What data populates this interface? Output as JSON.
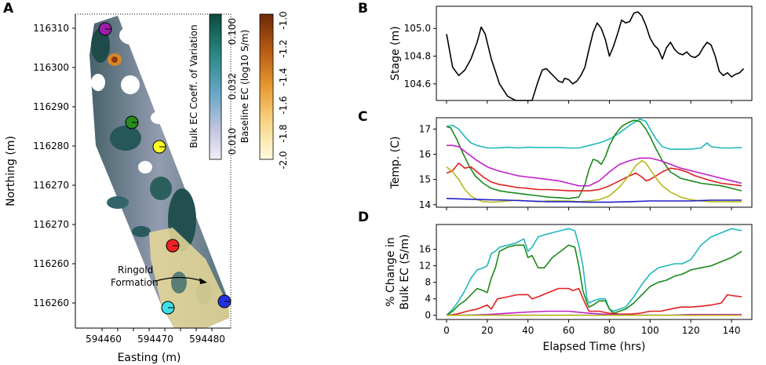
{
  "panels": {
    "a": "A",
    "b": "B",
    "c": "C",
    "d": "D"
  },
  "map": {
    "xlabel": "Easting (m)",
    "ylabel": "Northing (m)",
    "xticks": [
      "594460",
      "594470",
      "594480"
    ],
    "yticks": [
      "116310",
      "116300",
      "116290",
      "116280",
      "116270",
      "116260"
    ],
    "annotation": [
      "Ringold",
      "Formation"
    ],
    "cv_colorbar": {
      "label": "Bulk EC Coeff. of Variation",
      "ticks": [
        "0.100",
        "0.032",
        "0.010"
      ]
    },
    "ec_colorbar": {
      "label": "Baseline EC (log10 S/m)",
      "ticks": [
        "-1.0",
        "-1.2",
        "-1.4",
        "-1.6",
        "-1.8",
        "-2.0"
      ]
    },
    "sensors": [
      {
        "name": "purple",
        "color": "#9b1fa8"
      },
      {
        "name": "green",
        "color": "#2a8a1e"
      },
      {
        "name": "yellow",
        "color": "#ffff22"
      },
      {
        "name": "red",
        "color": "#ee2222"
      },
      {
        "name": "cyan",
        "color": "#3ee0e8"
      },
      {
        "name": "blue",
        "color": "#2233dd"
      }
    ]
  },
  "chart_data": [
    {
      "panel": "B",
      "type": "line",
      "ylabel": "Stage (m)",
      "xlim": [
        -5,
        150
      ],
      "ylim": [
        104.48,
        105.16
      ],
      "yticks": [
        "104.6",
        "104.8",
        "105.0"
      ],
      "series": [
        {
          "name": "stage",
          "color": "#000000",
          "x": [
            0,
            3,
            6,
            9,
            12,
            15,
            17,
            19,
            22,
            26,
            30,
            34,
            38,
            42,
            45,
            47,
            49,
            51,
            53,
            55,
            57,
            58,
            60,
            62,
            64,
            66,
            68,
            70,
            72,
            74,
            76,
            78,
            80,
            82,
            84,
            86,
            88,
            90,
            92,
            94,
            96,
            98,
            100,
            102,
            104,
            106,
            108,
            110,
            112,
            114,
            116,
            118,
            120,
            122,
            124,
            126,
            128,
            130,
            132,
            134,
            136,
            138,
            140,
            142,
            144,
            146
          ],
          "y": [
            104.96,
            104.72,
            104.66,
            104.7,
            104.78,
            104.9,
            105.01,
            104.96,
            104.78,
            104.6,
            104.51,
            104.48,
            104.48,
            104.48,
            104.62,
            104.7,
            104.71,
            104.68,
            104.65,
            104.62,
            104.61,
            104.64,
            104.63,
            104.6,
            104.62,
            104.66,
            104.72,
            104.85,
            104.97,
            105.04,
            105.0,
            104.92,
            104.8,
            104.87,
            104.96,
            105.06,
            105.04,
            105.05,
            105.11,
            105.12,
            105.09,
            105.02,
            104.93,
            104.88,
            104.85,
            104.78,
            104.86,
            104.9,
            104.85,
            104.82,
            104.81,
            104.83,
            104.8,
            104.79,
            104.81,
            104.86,
            104.9,
            104.88,
            104.8,
            104.69,
            104.66,
            104.68,
            104.65,
            104.67,
            104.68,
            104.71
          ]
        }
      ]
    },
    {
      "panel": "C",
      "type": "line",
      "ylabel": "Temp. (C)",
      "xlim": [
        -5,
        150
      ],
      "ylim": [
        13.9,
        17.45
      ],
      "yticks": [
        "14",
        "15",
        "16",
        "17"
      ],
      "series": [
        {
          "name": "cyan",
          "color": "#20b8bc",
          "x": [
            0,
            3,
            6,
            9,
            12,
            15,
            20,
            25,
            30,
            35,
            40,
            45,
            50,
            55,
            60,
            65,
            70,
            75,
            80,
            85,
            90,
            95,
            98,
            100,
            103,
            106,
            110,
            115,
            120,
            125,
            128,
            130,
            135,
            140,
            145
          ],
          "y": [
            17.1,
            17.15,
            17.0,
            16.7,
            16.45,
            16.35,
            16.25,
            16.25,
            16.28,
            16.25,
            16.28,
            16.27,
            16.27,
            16.27,
            16.25,
            16.25,
            16.35,
            16.45,
            16.6,
            16.85,
            17.15,
            17.4,
            17.3,
            17.0,
            16.6,
            16.3,
            16.2,
            16.2,
            16.2,
            16.25,
            16.45,
            16.3,
            16.25,
            16.25,
            16.27
          ]
        },
        {
          "name": "green",
          "color": "#1a8a1a",
          "x": [
            0,
            2,
            5,
            8,
            11,
            14,
            18,
            22,
            26,
            30,
            35,
            40,
            45,
            50,
            55,
            60,
            65,
            68,
            70,
            72,
            74,
            76,
            78,
            80,
            83,
            86,
            89,
            92,
            95,
            98,
            100,
            103,
            106,
            110,
            115,
            120,
            125,
            130,
            135,
            140,
            145
          ],
          "y": [
            17.1,
            17.05,
            16.6,
            16.05,
            15.55,
            15.15,
            14.85,
            14.65,
            14.55,
            14.5,
            14.45,
            14.4,
            14.35,
            14.3,
            14.28,
            14.25,
            14.3,
            14.8,
            15.4,
            15.8,
            15.75,
            15.6,
            15.9,
            16.35,
            16.8,
            17.1,
            17.25,
            17.35,
            17.3,
            17.0,
            16.7,
            16.2,
            15.75,
            15.3,
            15.05,
            14.95,
            14.85,
            14.8,
            14.75,
            14.65,
            14.55
          ]
        },
        {
          "name": "purple",
          "color": "#c020c8",
          "x": [
            0,
            3,
            6,
            10,
            15,
            20,
            25,
            30,
            35,
            40,
            45,
            50,
            55,
            60,
            65,
            70,
            75,
            80,
            85,
            90,
            95,
            100,
            105,
            110,
            115,
            120,
            125,
            130,
            135,
            140,
            145
          ],
          "y": [
            16.35,
            16.35,
            16.3,
            16.05,
            15.75,
            15.5,
            15.35,
            15.25,
            15.15,
            15.1,
            15.05,
            15.0,
            14.95,
            14.85,
            14.75,
            14.75,
            14.95,
            15.3,
            15.6,
            15.75,
            15.85,
            15.85,
            15.75,
            15.6,
            15.45,
            15.35,
            15.25,
            15.15,
            15.05,
            14.95,
            14.85
          ]
        },
        {
          "name": "red",
          "color": "#e02020",
          "x": [
            0,
            3,
            6,
            9,
            12,
            15,
            18,
            22,
            26,
            30,
            35,
            40,
            45,
            50,
            55,
            60,
            65,
            70,
            75,
            80,
            85,
            90,
            93,
            96,
            98,
            100,
            103,
            106,
            110,
            114,
            118,
            122,
            126,
            130,
            135,
            140,
            145
          ],
          "y": [
            15.25,
            15.35,
            15.65,
            15.45,
            15.5,
            15.3,
            15.1,
            14.9,
            14.8,
            14.75,
            14.68,
            14.65,
            14.6,
            14.6,
            14.58,
            14.55,
            14.55,
            14.55,
            14.6,
            14.75,
            14.95,
            15.15,
            15.25,
            15.1,
            14.95,
            15.0,
            15.15,
            15.3,
            15.45,
            15.4,
            15.3,
            15.15,
            15.05,
            14.95,
            14.85,
            14.8,
            14.75
          ]
        },
        {
          "name": "yellow",
          "color": "#b8b818",
          "x": [
            0,
            3,
            6,
            9,
            12,
            15,
            18,
            22,
            26,
            30,
            35,
            40,
            45,
            50,
            55,
            60,
            65,
            70,
            75,
            80,
            85,
            90,
            93,
            96,
            98,
            100,
            103,
            106,
            110,
            115,
            120,
            125,
            130,
            135,
            140,
            145
          ],
          "y": [
            15.5,
            15.3,
            15.0,
            14.6,
            14.35,
            14.2,
            14.12,
            14.1,
            14.12,
            14.15,
            14.18,
            14.15,
            14.12,
            14.15,
            14.15,
            14.15,
            14.12,
            14.15,
            14.2,
            14.35,
            14.7,
            15.2,
            15.55,
            15.75,
            15.65,
            15.4,
            15.05,
            14.75,
            14.5,
            14.3,
            14.2,
            14.15,
            14.12,
            14.12,
            14.12,
            14.12
          ]
        },
        {
          "name": "blue",
          "color": "#2020cc",
          "x": [
            0,
            10,
            20,
            30,
            40,
            50,
            60,
            70,
            80,
            90,
            100,
            110,
            120,
            130,
            140,
            145
          ],
          "y": [
            14.25,
            14.22,
            14.2,
            14.18,
            14.15,
            14.12,
            14.12,
            14.1,
            14.1,
            14.12,
            14.15,
            14.15,
            14.15,
            14.18,
            14.18,
            14.18
          ]
        }
      ]
    },
    {
      "panel": "D",
      "type": "line",
      "ylabel": [
        "% Change in",
        "Bulk EC (S/m)"
      ],
      "xlabel": "Elapsed Time (hrs)",
      "xlim": [
        -5,
        150
      ],
      "ylim": [
        -1,
        22
      ],
      "xticks": [
        "0",
        "20",
        "40",
        "60",
        "80",
        "100",
        "120",
        "140"
      ],
      "yticks": [
        "0",
        "4",
        "8",
        "12",
        "16"
      ],
      "series": [
        {
          "name": "cyan",
          "color": "#20b8bc",
          "x": [
            0,
            3,
            6,
            9,
            12,
            15,
            18,
            20,
            22,
            24,
            26,
            30,
            34,
            38,
            40,
            42,
            45,
            48,
            52,
            56,
            60,
            63,
            65,
            67,
            69,
            70,
            72,
            75,
            78,
            80,
            82,
            85,
            88,
            92,
            96,
            100,
            104,
            108,
            112,
            116,
            120,
            125,
            130,
            135,
            140,
            145
          ],
          "y": [
            0,
            1.5,
            3.5,
            6,
            9,
            11,
            11.5,
            12,
            15,
            15.5,
            16.5,
            17,
            17.5,
            18.5,
            15.5,
            16.5,
            19,
            19.5,
            20,
            20.5,
            21,
            20.5,
            17,
            12,
            4,
            3,
            3.5,
            4,
            4,
            1.5,
            1,
            1.5,
            2,
            4.5,
            7.5,
            10,
            11.5,
            12,
            12.5,
            12.5,
            13.5,
            17,
            19,
            20,
            21,
            20.5
          ]
        },
        {
          "name": "green",
          "color": "#1a8a1a",
          "x": [
            0,
            3,
            6,
            9,
            12,
            15,
            18,
            20,
            22,
            24,
            26,
            30,
            34,
            38,
            40,
            42,
            45,
            48,
            52,
            56,
            60,
            63,
            65,
            67,
            69,
            70,
            72,
            75,
            78,
            80,
            82,
            85,
            88,
            92,
            96,
            100,
            104,
            108,
            112,
            116,
            120,
            125,
            130,
            135,
            140,
            145
          ],
          "y": [
            0,
            1,
            2.5,
            3.5,
            5,
            6.5,
            6,
            5.5,
            9,
            11.5,
            15.5,
            16.5,
            17,
            17,
            14,
            14.5,
            11.5,
            11.5,
            14,
            15.5,
            17,
            16.5,
            12,
            6,
            3,
            2,
            2.5,
            3.5,
            3.5,
            1.5,
            0.5,
            1,
            1.5,
            3,
            5,
            7,
            8,
            8.5,
            9.5,
            10,
            11,
            11.5,
            12,
            13,
            14,
            15.5
          ]
        },
        {
          "name": "red",
          "color": "#e02020",
          "x": [
            0,
            5,
            10,
            15,
            20,
            22,
            25,
            30,
            35,
            40,
            42,
            45,
            50,
            55,
            60,
            62,
            65,
            68,
            70,
            75,
            80,
            85,
            90,
            95,
            100,
            105,
            110,
            115,
            120,
            125,
            130,
            135,
            138,
            140,
            145
          ],
          "y": [
            0,
            0.3,
            1,
            1.5,
            2.5,
            1.5,
            4,
            4.5,
            5,
            5,
            4,
            4.5,
            5.5,
            6.5,
            6.5,
            6,
            6.5,
            3,
            1,
            1,
            0.5,
            0.3,
            0.3,
            0.5,
            1,
            1,
            1.5,
            2,
            2,
            2.2,
            2.5,
            3,
            5,
            4.8,
            4.5
          ]
        },
        {
          "name": "purple",
          "color": "#c020c8",
          "x": [
            0,
            10,
            20,
            30,
            40,
            50,
            60,
            70,
            80,
            90,
            100,
            110,
            120,
            130,
            140,
            145
          ],
          "y": [
            0,
            0,
            0.2,
            0.5,
            0.8,
            1,
            1,
            0.5,
            0.2,
            0,
            0,
            0,
            0.2,
            0.2,
            0.2,
            0.2
          ]
        },
        {
          "name": "blue",
          "color": "#2020cc",
          "x": [
            0,
            20,
            40,
            60,
            80,
            100,
            120,
            145
          ],
          "y": [
            0,
            0,
            0,
            0,
            0,
            0,
            0,
            0
          ]
        },
        {
          "name": "yellow",
          "color": "#b8b818",
          "x": [
            0,
            20,
            40,
            60,
            80,
            100,
            120,
            145
          ],
          "y": [
            0,
            0,
            0,
            0,
            0,
            0,
            0,
            0
          ]
        }
      ]
    }
  ]
}
